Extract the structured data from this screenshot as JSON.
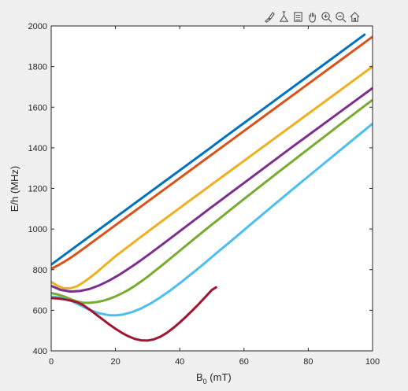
{
  "toolbar": {
    "icons": [
      "brush-icon",
      "data-tips-icon",
      "legend-icon",
      "pan-icon",
      "zoom-in-icon",
      "zoom-out-icon",
      "home-icon"
    ]
  },
  "chart_data": {
    "type": "line",
    "title": "",
    "xlabel_main": "B",
    "xlabel_sub": "0",
    "xlabel_unit": " (mT)",
    "ylabel": "E/h (MHz)",
    "xlim": [
      0,
      100
    ],
    "ylim": [
      400,
      2000
    ],
    "xticks": [
      0,
      20,
      40,
      60,
      80,
      100
    ],
    "yticks": [
      400,
      600,
      800,
      1000,
      1200,
      1400,
      1600,
      1800,
      2000
    ],
    "grid": false,
    "colors": [
      "#0072bd",
      "#d95319",
      "#edb120",
      "#7e2f8e",
      "#77ac30",
      "#4dbeee",
      "#a2142f"
    ],
    "series": [
      {
        "x": [
          0,
          5,
          10,
          15,
          20,
          25,
          30,
          35,
          40,
          45,
          50,
          51.5,
          55,
          60,
          65,
          70,
          75,
          80,
          85,
          90,
          95,
          97.5
        ],
        "y": [
          825,
          883,
          941,
          999,
          1057,
          1115,
          1173,
          1231,
          1289,
          1347,
          1405,
          1423,
          1464,
          1522,
          1580,
          1638,
          1696,
          1754,
          1812,
          1870,
          1928,
          1957
        ]
      },
      {
        "x": [
          0,
          2,
          4,
          6,
          8,
          10,
          15,
          20,
          25,
          30,
          35,
          40,
          45,
          50,
          51.2,
          55,
          60,
          65,
          70,
          75,
          80,
          85,
          90,
          95,
          100
        ],
        "y": [
          805,
          820,
          838,
          858,
          880,
          903,
          961,
          1019,
          1077,
          1135,
          1193,
          1251,
          1309,
          1367,
          1381,
          1425,
          1483,
          1541,
          1599,
          1657,
          1715,
          1773,
          1831,
          1889,
          1947
        ]
      },
      {
        "x": [
          0,
          2,
          4,
          6,
          8,
          10,
          12,
          14,
          16,
          20,
          25,
          30,
          35,
          40,
          45,
          50,
          51.3,
          55,
          60,
          65,
          70,
          75,
          80,
          85,
          90,
          95,
          100
        ],
        "y": [
          740,
          720,
          708,
          708,
          718,
          737,
          760,
          785,
          812,
          866,
          926,
          986,
          1045,
          1104,
          1162,
          1220,
          1235,
          1278,
          1336,
          1394,
          1452,
          1510,
          1568,
          1626,
          1684,
          1742,
          1800
        ]
      },
      {
        "x": [
          0,
          3,
          6,
          9,
          12,
          15,
          18,
          21,
          24,
          27,
          30,
          35,
          40,
          45,
          50,
          51.2,
          55,
          60,
          65,
          70,
          75,
          80,
          85,
          90,
          95,
          100
        ],
        "y": [
          720,
          700,
          692,
          695,
          705,
          723,
          746,
          773,
          804,
          836,
          870,
          929,
          989,
          1049,
          1109,
          1123,
          1168,
          1227,
          1286,
          1345,
          1404,
          1462,
          1520,
          1578,
          1636,
          1694
        ]
      },
      {
        "x": [
          0,
          2,
          4,
          6,
          8,
          10,
          12,
          14,
          16,
          18,
          20,
          22,
          24,
          26,
          28,
          30,
          32,
          35,
          40,
          45,
          50,
          51.3,
          55,
          60,
          65,
          70,
          75,
          80,
          85,
          90,
          95,
          100
        ],
        "y": [
          685,
          678,
          668,
          655,
          643,
          637,
          637,
          640,
          646,
          656,
          668,
          683,
          700,
          720,
          742,
          765,
          790,
          828,
          893,
          958,
          1022,
          1038,
          1085,
          1148,
          1210,
          1272,
          1333,
          1394,
          1455,
          1516,
          1576,
          1636
        ]
      },
      {
        "x": [
          0,
          3,
          6,
          9,
          12,
          15,
          18,
          20,
          22,
          25,
          28,
          31,
          34,
          37,
          40,
          45,
          50,
          51.3,
          55,
          60,
          65,
          70,
          75,
          80,
          85,
          90,
          95,
          100
        ],
        "y": [
          668,
          662,
          648,
          625,
          602,
          585,
          576,
          575,
          578,
          590,
          609,
          634,
          664,
          697,
          733,
          796,
          862,
          880,
          928,
          995,
          1062,
          1128,
          1194,
          1259,
          1324,
          1389,
          1454,
          1519
        ]
      },
      {
        "x": [
          0,
          2,
          4,
          6,
          8,
          10,
          12,
          14,
          16,
          18,
          20,
          22,
          24,
          26,
          28,
          30,
          32,
          34,
          36,
          38,
          40,
          42,
          44,
          46,
          48,
          50,
          51.3
        ],
        "y": [
          660,
          658,
          654,
          648,
          640,
          625,
          603,
          579,
          555,
          531,
          509,
          489,
          472,
          459,
          452,
          451,
          457,
          470,
          489,
          513,
          540,
          569,
          600,
          632,
          666,
          700,
          713
        ]
      }
    ]
  }
}
